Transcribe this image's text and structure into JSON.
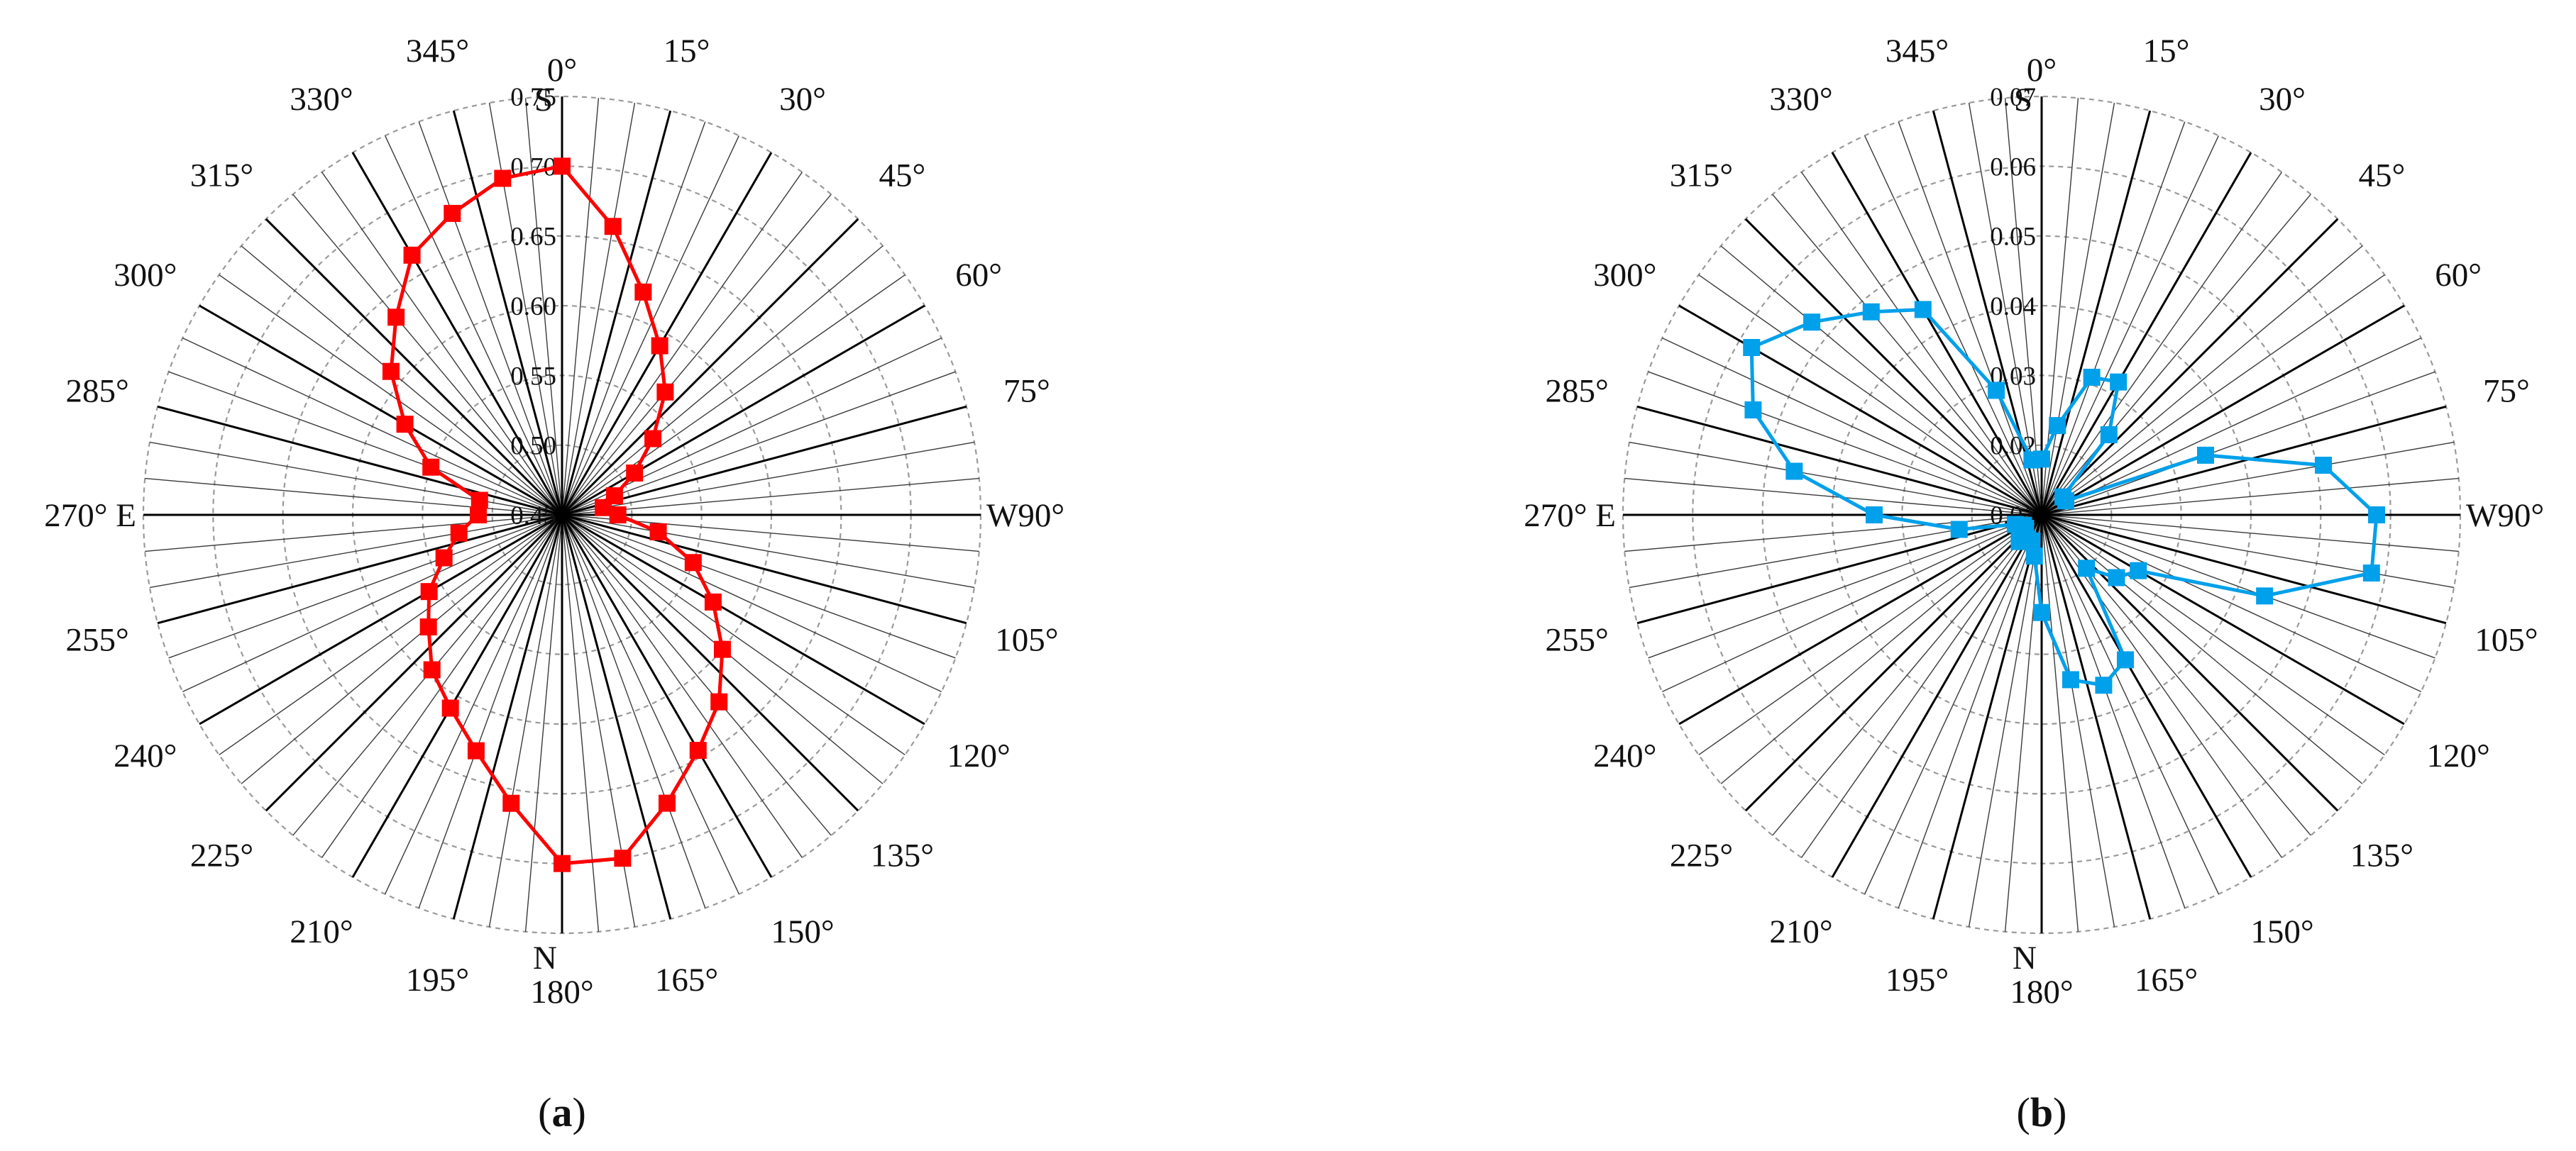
{
  "chart_data": [
    {
      "type": "radar",
      "panel_label": "(a)",
      "panel_letter": "a",
      "series_color": "#ff0000",
      "radial_range": [
        0.45,
        0.75
      ],
      "radial_ticks": [
        "0.45",
        "0.50",
        "0.55",
        "0.60",
        "0.65",
        "0.70",
        "0.75"
      ],
      "radial_tick_values": [
        0.45,
        0.5,
        0.55,
        0.6,
        0.65,
        0.7,
        0.75
      ],
      "angles_deg": [
        0,
        15,
        30,
        45,
        60,
        75,
        90,
        105,
        120,
        135,
        150,
        165,
        180,
        195,
        210,
        225,
        240,
        255,
        270,
        285,
        300,
        315,
        330,
        345
      ],
      "angle_labels": [
        "0°",
        "15°",
        "30°",
        "45°",
        "60°",
        "75°",
        "W90°",
        "105°",
        "120°",
        "135°",
        "150°",
        "165°",
        "180°",
        "195°",
        "210°",
        "225°",
        "240°",
        "255°",
        "270° E",
        "285°",
        "300°",
        "315°",
        "330°",
        "345°"
      ],
      "compass_labels": {
        "north_top": "S",
        "south_bottom": "N"
      },
      "grid": true,
      "x": [
        0,
        10,
        20,
        30,
        40,
        50,
        60,
        70,
        80,
        90,
        100,
        110,
        120,
        130,
        140,
        150,
        160,
        170,
        180,
        190,
        200,
        210,
        220,
        230,
        240,
        250,
        260,
        270,
        280,
        290,
        300,
        310,
        320,
        330,
        340,
        350
      ],
      "values": [
        0.7,
        0.66,
        0.62,
        0.59,
        0.565,
        0.535,
        0.51,
        0.49,
        0.48,
        0.49,
        0.52,
        0.55,
        0.575,
        0.6,
        0.625,
        0.645,
        0.67,
        0.7,
        0.7,
        0.66,
        0.63,
        0.61,
        0.595,
        0.575,
        0.56,
        0.54,
        0.525,
        0.51,
        0.51,
        0.55,
        0.58,
        0.61,
        0.635,
        0.665,
        0.68,
        0.695
      ]
    },
    {
      "type": "radar",
      "panel_label": "(b)",
      "panel_letter": "b",
      "series_color": "#00a0ea",
      "radial_range": [
        0.01,
        0.07
      ],
      "radial_ticks": [
        "0.01",
        "0.02",
        "0.03",
        "0.04",
        "0.05",
        "0.06",
        "0.07"
      ],
      "radial_tick_values": [
        0.01,
        0.02,
        0.03,
        0.04,
        0.05,
        0.06,
        0.07
      ],
      "angles_deg": [
        0,
        15,
        30,
        45,
        60,
        75,
        90,
        105,
        120,
        135,
        150,
        165,
        180,
        195,
        210,
        225,
        240,
        255,
        270,
        285,
        300,
        315,
        330,
        345
      ],
      "angle_labels": [
        "0°",
        "15°",
        "30°",
        "45°",
        "60°",
        "75°",
        "W90°",
        "105°",
        "120°",
        "135°",
        "150°",
        "165°",
        "180°",
        "195°",
        "210°",
        "225°",
        "240°",
        "255°",
        "270° E",
        "285°",
        "300°",
        "315°",
        "330°",
        "345°"
      ],
      "compass_labels": {
        "north_top": "S",
        "south_bottom": "N"
      },
      "grid": true,
      "x": [
        0,
        10,
        20,
        30,
        40,
        50,
        60,
        70,
        80,
        90,
        100,
        110,
        120,
        130,
        140,
        150,
        160,
        170,
        180,
        190,
        200,
        210,
        220,
        230,
        240,
        250,
        260,
        270,
        280,
        290,
        300,
        310,
        320,
        330,
        340,
        350
      ],
      "values": [
        0.018,
        0.023,
        0.031,
        0.032,
        0.025,
        0.014,
        0.014,
        0.035,
        0.051,
        0.058,
        0.058,
        0.044,
        0.026,
        0.024,
        0.02,
        0.034,
        0.036,
        0.034,
        0.024,
        0.016,
        0.014,
        0.014,
        0.015,
        0.013,
        0.013,
        0.014,
        0.022,
        0.034,
        0.046,
        0.054,
        0.058,
        0.053,
        0.048,
        0.044,
        0.029,
        0.018
      ]
    }
  ]
}
